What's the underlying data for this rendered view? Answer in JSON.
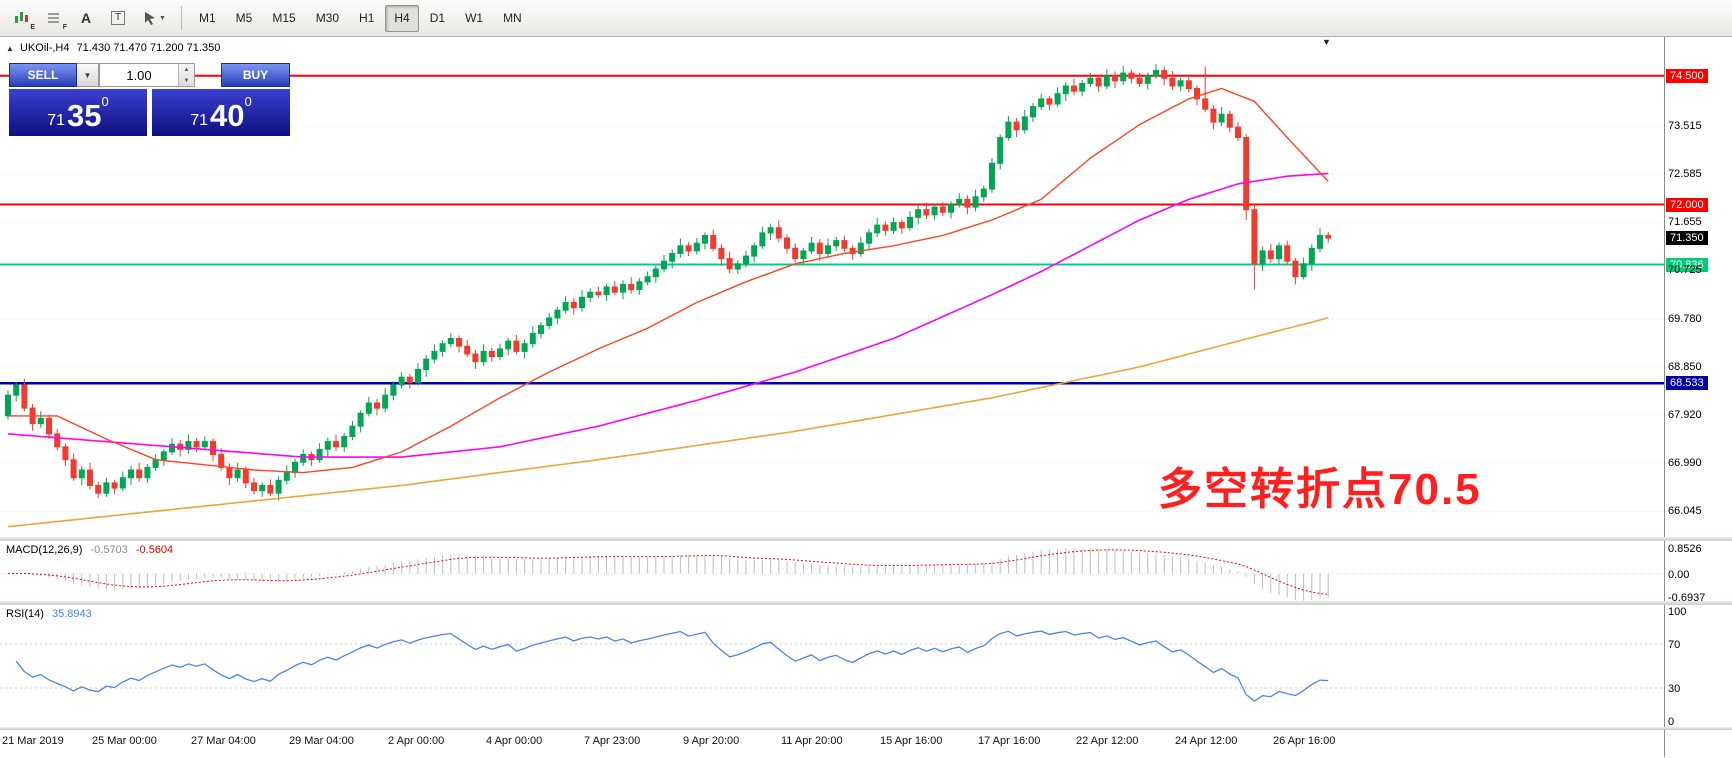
{
  "toolbar": {
    "icons": [
      {
        "name": "mini-chart-icon",
        "badge": "E"
      },
      {
        "name": "indicator-grid-icon",
        "badge": "F"
      },
      {
        "name": "text-tool-icon",
        "glyph": "A"
      },
      {
        "name": "text-box-tool-icon",
        "glyph": "T"
      },
      {
        "name": "cursor-tool-icon"
      }
    ],
    "timeframes": [
      {
        "label": "M1"
      },
      {
        "label": "M5"
      },
      {
        "label": "M15"
      },
      {
        "label": "M30"
      },
      {
        "label": "H1"
      },
      {
        "label": "H4",
        "active": true
      },
      {
        "label": "D1"
      },
      {
        "label": "W1"
      },
      {
        "label": "MN"
      }
    ]
  },
  "chart": {
    "symbol_title": "UKOil-,H4",
    "ohlc_values": "71.430 71.470 71.200 71.350",
    "annotation": "多空转折点70.5",
    "trade_panel": {
      "sell_label": "SELL",
      "buy_label": "BUY",
      "volume": "1.00",
      "sell_small": "71",
      "sell_big": "35",
      "sell_sup": "0",
      "buy_small": "71",
      "buy_big": "40",
      "buy_sup": "0"
    },
    "price_axis": [
      {
        "label": "74.500",
        "price": 74.5,
        "type": "red"
      },
      {
        "label": "73.515",
        "price": 73.515,
        "type": "plain"
      },
      {
        "label": "72.585",
        "price": 72.585,
        "type": "plain"
      },
      {
        "label": "72.000",
        "price": 72.0,
        "type": "red"
      },
      {
        "label": "71.655",
        "price": 71.655,
        "type": "plain"
      },
      {
        "label": "71.350",
        "price": 71.35,
        "type": "black"
      },
      {
        "label": "70.836",
        "price": 70.836,
        "type": "green"
      },
      {
        "label": "70.725",
        "price": 70.725,
        "type": "plain"
      },
      {
        "label": "69.780",
        "price": 69.78,
        "type": "plain"
      },
      {
        "label": "68.850",
        "price": 68.85,
        "type": "plain"
      },
      {
        "label": "68.533",
        "price": 68.533,
        "type": "blue"
      },
      {
        "label": "67.920",
        "price": 67.92,
        "type": "plain"
      },
      {
        "label": "66.990",
        "price": 66.99,
        "type": "plain"
      },
      {
        "label": "66.045",
        "price": 66.045,
        "type": "plain"
      }
    ],
    "hlines": [
      {
        "price": 74.5,
        "color": "#ff0000",
        "width": 2
      },
      {
        "price": 72.0,
        "color": "#ff0000",
        "width": 2
      },
      {
        "price": 70.836,
        "color": "#00d084",
        "width": 2
      },
      {
        "price": 68.533,
        "color": "#0000a8",
        "width": 2.5
      }
    ]
  },
  "chart_data": {
    "type": "candlestick",
    "symbol": "UKOil-",
    "timeframe": "H4",
    "price_top": 75.25,
    "price_bottom": 65.55,
    "first_open": 67.9,
    "closes": [
      68.3,
      68.5,
      68.05,
      67.75,
      67.85,
      67.55,
      67.3,
      67.05,
      66.7,
      66.85,
      66.55,
      66.4,
      66.6,
      66.5,
      66.7,
      66.85,
      66.7,
      66.9,
      67.05,
      67.2,
      67.35,
      67.25,
      67.4,
      67.3,
      67.4,
      67.15,
      66.9,
      66.7,
      66.85,
      66.6,
      66.45,
      66.55,
      66.4,
      66.65,
      66.8,
      67.0,
      67.15,
      67.05,
      67.25,
      67.4,
      67.3,
      67.5,
      67.7,
      67.95,
      68.15,
      68.05,
      68.3,
      68.5,
      68.65,
      68.55,
      68.8,
      69.0,
      69.15,
      69.3,
      69.4,
      69.25,
      69.1,
      68.95,
      69.15,
      69.05,
      69.2,
      69.35,
      69.15,
      69.3,
      69.5,
      69.65,
      69.8,
      69.95,
      70.1,
      70.0,
      70.2,
      70.3,
      70.25,
      70.4,
      70.3,
      70.45,
      70.35,
      70.5,
      70.6,
      70.75,
      70.9,
      71.05,
      71.2,
      71.1,
      71.25,
      71.4,
      71.15,
      70.95,
      70.75,
      70.85,
      71.0,
      71.2,
      71.45,
      71.55,
      71.35,
      71.15,
      70.95,
      71.1,
      71.25,
      71.05,
      71.2,
      71.3,
      71.15,
      71.05,
      71.25,
      71.45,
      71.6,
      71.5,
      71.65,
      71.55,
      71.75,
      71.9,
      71.8,
      71.95,
      71.85,
      72.0,
      72.1,
      71.95,
      72.15,
      72.3,
      72.8,
      73.3,
      73.6,
      73.45,
      73.7,
      73.9,
      74.05,
      73.95,
      74.15,
      74.3,
      74.2,
      74.35,
      74.45,
      74.3,
      74.5,
      74.4,
      74.55,
      74.45,
      74.35,
      74.5,
      74.6,
      74.45,
      74.3,
      74.4,
      74.25,
      74.05,
      73.85,
      73.6,
      73.75,
      73.5,
      73.3,
      71.9,
      70.85,
      71.1,
      70.95,
      71.2,
      70.9,
      70.6,
      70.85,
      71.15,
      71.4,
      71.35
    ],
    "high_overrides": {
      "140": 74.72,
      "146": 74.68
    },
    "low_overrides": {
      "151": 71.7,
      "152": 70.35,
      "157": 70.45,
      "158": 70.55
    },
    "ma_fast": [
      [
        0,
        67.9
      ],
      [
        6,
        67.9
      ],
      [
        12,
        67.45
      ],
      [
        18,
        67.05
      ],
      [
        24,
        66.95
      ],
      [
        30,
        66.85
      ],
      [
        36,
        66.8
      ],
      [
        42,
        66.9
      ],
      [
        48,
        67.2
      ],
      [
        54,
        67.7
      ],
      [
        60,
        68.25
      ],
      [
        66,
        68.75
      ],
      [
        72,
        69.2
      ],
      [
        78,
        69.6
      ],
      [
        84,
        70.1
      ],
      [
        90,
        70.5
      ],
      [
        96,
        70.85
      ],
      [
        102,
        71.05
      ],
      [
        108,
        71.2
      ],
      [
        114,
        71.4
      ],
      [
        120,
        71.7
      ],
      [
        126,
        72.1
      ],
      [
        132,
        72.9
      ],
      [
        138,
        73.55
      ],
      [
        144,
        74.05
      ],
      [
        148,
        74.25
      ],
      [
        152,
        74.0
      ],
      [
        156,
        73.3
      ],
      [
        161,
        72.45
      ]
    ],
    "ma_mid": [
      [
        0,
        67.55
      ],
      [
        12,
        67.4
      ],
      [
        24,
        67.25
      ],
      [
        36,
        67.1
      ],
      [
        48,
        67.1
      ],
      [
        60,
        67.3
      ],
      [
        72,
        67.7
      ],
      [
        84,
        68.2
      ],
      [
        96,
        68.75
      ],
      [
        108,
        69.4
      ],
      [
        120,
        70.25
      ],
      [
        126,
        70.7
      ],
      [
        132,
        71.2
      ],
      [
        138,
        71.7
      ],
      [
        144,
        72.1
      ],
      [
        150,
        72.4
      ],
      [
        156,
        72.55
      ],
      [
        161,
        72.6
      ]
    ],
    "ma_slow": [
      [
        0,
        65.75
      ],
      [
        24,
        66.15
      ],
      [
        48,
        66.55
      ],
      [
        72,
        67.05
      ],
      [
        96,
        67.6
      ],
      [
        120,
        68.25
      ],
      [
        138,
        68.85
      ],
      [
        150,
        69.35
      ],
      [
        161,
        69.8
      ]
    ],
    "grid_prices": [
      73.515,
      72.585,
      71.655,
      70.725,
      69.78,
      68.85,
      67.92,
      66.99,
      66.045
    ],
    "time_labels": [
      "21 Mar 2019",
      "25 Mar 00:00",
      "27 Mar 04:00",
      "29 Mar 04:00",
      "2 Apr 00:00",
      "4 Apr 00:00",
      "7 Apr 23:00",
      "9 Apr 20:00",
      "11 Apr 20:00",
      "15 Apr 16:00",
      "17 Apr 16:00",
      "22 Apr 12:00",
      "24 Apr 12:00",
      "26 Apr 16:00"
    ]
  },
  "macd": {
    "label": "MACD(12,26,9)",
    "main_value": "-0.5703",
    "signal_value": "-0.5604",
    "axis_labels": [
      "0.8526",
      "0.00",
      "-0.6937"
    ],
    "axis_values": [
      0.8526,
      0,
      -0.6937
    ],
    "range_top": 0.95,
    "range_bottom": -0.8
  },
  "rsi": {
    "label": "RSI(14)",
    "value": "35.8943",
    "axis_labels": [
      "100",
      "70",
      "30",
      "0"
    ],
    "axis_values": [
      100,
      70,
      30,
      0
    ],
    "levels": [
      70,
      30
    ]
  },
  "colors": {
    "up": "#00a651",
    "down": "#f23b2f",
    "ma_fast": "#ff4422",
    "ma_mid": "#ff00ff",
    "ma_slow": "#f0a433",
    "macd_hist": "#bdbdbd",
    "macd_signal": "#ff0000",
    "rsi_line": "#4a86e8",
    "annotation": "#ff1f1f"
  }
}
